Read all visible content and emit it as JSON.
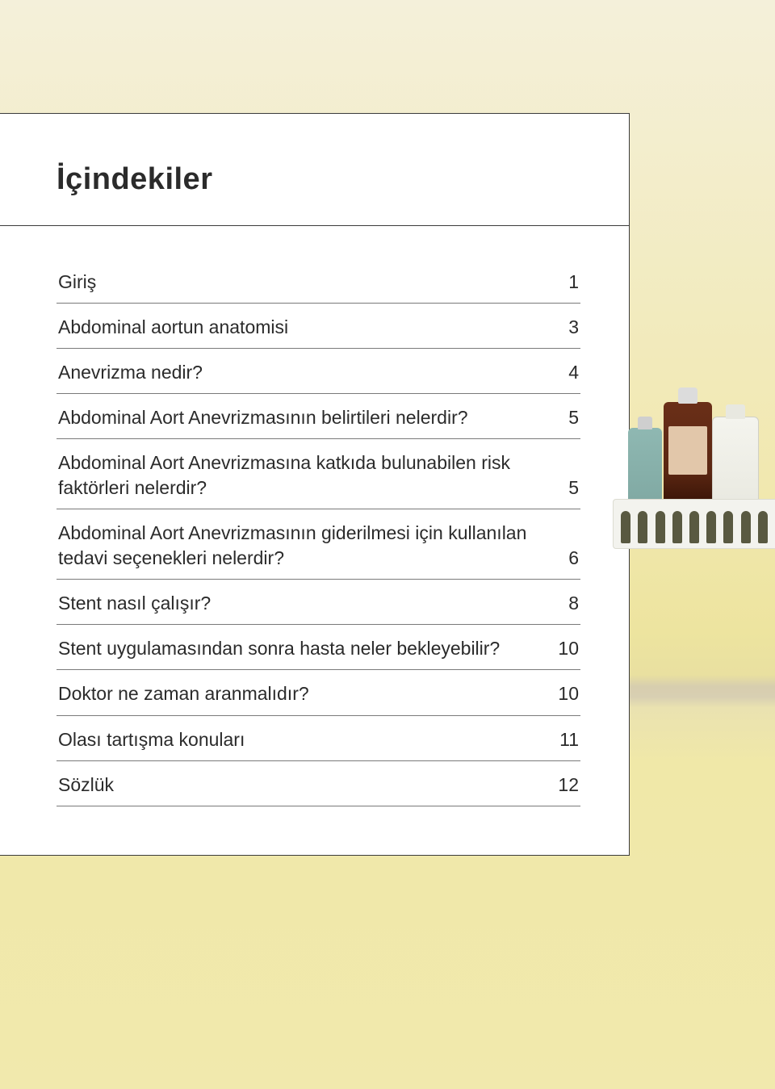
{
  "toc": {
    "title": "İçindekiler",
    "title_color": "#2b2b2b",
    "title_fontsize_pt": 28,
    "card_bg": "#ffffff",
    "card_border_color": "#3b3b3b",
    "row_border_color": "#7a7a7a",
    "row_fontsize_pt": 17,
    "text_color": "#2b2b2b",
    "items": [
      {
        "label": "Giriş",
        "page": "1"
      },
      {
        "label": "Abdominal aortun anatomisi",
        "page": "3"
      },
      {
        "label": "Anevrizma nedir?",
        "page": "4"
      },
      {
        "label": "Abdominal Aort Anevrizmasının belirtileri nelerdir?",
        "page": "5"
      },
      {
        "label": "Abdominal Aort Anevrizmasına katkıda bulunabilen risk faktörleri nelerdir?",
        "page": "5"
      },
      {
        "label": "Abdominal Aort Anevrizmasının giderilmesi için kullanılan tedavi seçenekleri nelerdir?",
        "page": "6"
      },
      {
        "label": "Stent nasıl çalışır?",
        "page": "8"
      },
      {
        "label": "Stent uygulamasından sonra hasta neler bekleyebilir?",
        "page": "10"
      },
      {
        "label": "Doktor ne zaman aranmalıdır?",
        "page": "10"
      },
      {
        "label": "Olası tartışma konuları",
        "page": "11"
      },
      {
        "label": "Sözlük",
        "page": "12"
      }
    ]
  },
  "page_bg_colors": {
    "top": "#f4f0da",
    "mid": "#f1e8af",
    "low": "#ede49f",
    "shelf_shadow": "#d7ceae"
  },
  "illustration": {
    "type": "infographic",
    "description": "right-side cropped photo of medicine bottles in a white basket on a shelf",
    "bottles": [
      {
        "name": "teal-bottle",
        "color": "#8fb8b2",
        "cap_color": "#cfcfcf"
      },
      {
        "name": "brown-bottle",
        "color": "#5a2612",
        "label_color": "#e2c7aa",
        "cap_color": "#dcdcdc"
      },
      {
        "name": "white-bottle",
        "color": "#f4f4ee",
        "cap_color": "#e8e8e0"
      }
    ],
    "basket": {
      "color": "#f3f3ee",
      "hole_color": "#595941",
      "hole_count": 9
    }
  }
}
